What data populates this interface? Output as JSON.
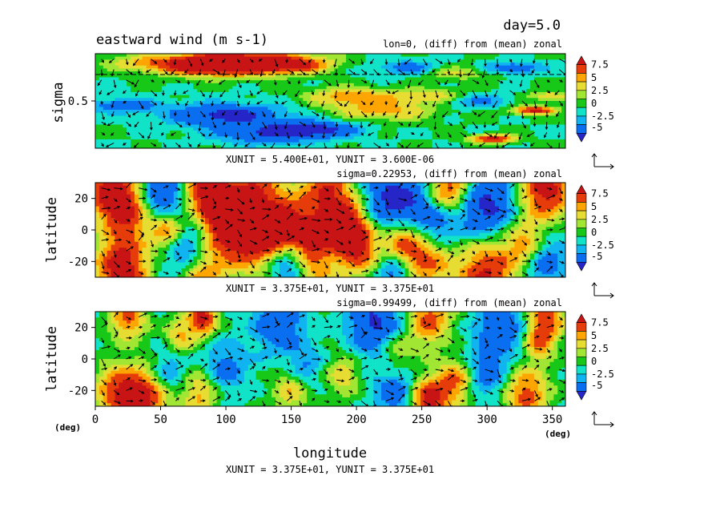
{
  "figure": {
    "day_label": "day=5.0",
    "title": "eastward wind (m s-1)",
    "xlabel": "longitude"
  },
  "colors": {
    "levels": [
      "#2626c8",
      "#0a6ef0",
      "#10b4f0",
      "#10e3c8",
      "#18c818",
      "#a0e632",
      "#e6dc32",
      "#ffa500",
      "#e63c0a",
      "#c81414"
    ],
    "contour_line": "#000000",
    "vector": "#000000"
  },
  "colorbar": {
    "tick_labels": [
      "7.5",
      "5",
      "2.5",
      "0",
      "-2.5",
      "-5"
    ]
  },
  "chart_data": [
    {
      "type": "heatmap",
      "panel": "top",
      "subtitle": "lon=0, (diff) from (mean) zonal",
      "xlabel": "",
      "ylabel": "sigma",
      "y_ticks": [
        "0.5"
      ],
      "x_ticks": [],
      "unit_text": "XUNIT = 5.400E+01, YUNIT = 3.600E-06",
      "x_range": [
        -90,
        90
      ],
      "y_range": [
        0.0,
        1.0
      ],
      "y_inverted": true,
      "color_levels": [
        -5,
        -2.5,
        0,
        2.5,
        5,
        7.5
      ],
      "blobs": [
        {
          "x": -45,
          "y": 0.12,
          "v": 9.5,
          "r": 14
        },
        {
          "x": -30,
          "y": 0.08,
          "v": 7.0,
          "r": 18
        },
        {
          "x": -15,
          "y": 0.12,
          "v": 6.0,
          "r": 10
        },
        {
          "x": -70,
          "y": 0.1,
          "v": 3.5,
          "r": 12
        },
        {
          "x": 8,
          "y": 0.45,
          "v": 5.0,
          "r": 12
        },
        {
          "x": 20,
          "y": 0.6,
          "v": 4.5,
          "r": 14
        },
        {
          "x": 38,
          "y": 0.45,
          "v": 4.0,
          "r": 10
        },
        {
          "x": 48,
          "y": 0.2,
          "v": 3.0,
          "r": 10
        },
        {
          "x": 62,
          "y": 0.9,
          "v": 9.0,
          "r": 6
        },
        {
          "x": 78,
          "y": 0.6,
          "v": 8.5,
          "r": 6
        },
        {
          "x": 84,
          "y": 0.45,
          "v": 4.0,
          "r": 6
        },
        {
          "x": -40,
          "y": 0.65,
          "v": -6.0,
          "r": 16
        },
        {
          "x": -25,
          "y": 0.85,
          "v": -4.5,
          "r": 14
        },
        {
          "x": -5,
          "y": 0.8,
          "v": -5.5,
          "r": 12
        },
        {
          "x": -80,
          "y": 0.55,
          "v": -4.0,
          "r": 10
        },
        {
          "x": 55,
          "y": 0.5,
          "v": -3.0,
          "r": 10
        },
        {
          "x": 70,
          "y": 0.15,
          "v": -4.5,
          "r": 8
        },
        {
          "x": 30,
          "y": 0.15,
          "v": -3.5,
          "r": 10
        }
      ]
    },
    {
      "type": "heatmap",
      "panel": "middle",
      "subtitle": "sigma=0.22953, (diff) from (mean) zonal",
      "xlabel": "",
      "ylabel": "latitude",
      "y_ticks": [
        "20",
        "0",
        "-20"
      ],
      "x_ticks": [],
      "unit_text": "XUNIT = 3.375E+01, YUNIT = 3.375E+01",
      "x_range": [
        0,
        360
      ],
      "y_range": [
        -30,
        30
      ],
      "y_inverted": false,
      "color_levels": [
        -5,
        -2.5,
        0,
        2.5,
        5,
        7.5
      ],
      "blobs": [
        {
          "x": 10,
          "y": 26,
          "v": 8.0,
          "r": 12
        },
        {
          "x": 85,
          "y": 26,
          "v": 9.0,
          "r": 12
        },
        {
          "x": 120,
          "y": 26,
          "v": 6.0,
          "r": 16
        },
        {
          "x": 175,
          "y": 25,
          "v": 7.0,
          "r": 14
        },
        {
          "x": 270,
          "y": 26,
          "v": 7.5,
          "r": 12
        },
        {
          "x": 345,
          "y": 26,
          "v": 9.0,
          "r": 14
        },
        {
          "x": 25,
          "y": 12,
          "v": 8.0,
          "r": 14
        },
        {
          "x": 55,
          "y": 0,
          "v": 7.0,
          "r": 10
        },
        {
          "x": 100,
          "y": 5,
          "v": 8.5,
          "r": 14
        },
        {
          "x": 122,
          "y": -3,
          "v": 9.5,
          "r": 16
        },
        {
          "x": 145,
          "y": 2,
          "v": 9.5,
          "r": 12
        },
        {
          "x": 165,
          "y": -5,
          "v": 8.5,
          "r": 10
        },
        {
          "x": 190,
          "y": 6,
          "v": 8.0,
          "r": 12
        },
        {
          "x": 200,
          "y": -10,
          "v": 8.5,
          "r": 12
        },
        {
          "x": 235,
          "y": -8,
          "v": 7.5,
          "r": 12
        },
        {
          "x": 255,
          "y": -18,
          "v": 6.5,
          "r": 14
        },
        {
          "x": 330,
          "y": -10,
          "v": 7.0,
          "r": 12
        },
        {
          "x": 20,
          "y": -25,
          "v": 9.5,
          "r": 14
        },
        {
          "x": 80,
          "y": -28,
          "v": 7.0,
          "r": 14
        },
        {
          "x": 165,
          "y": -27,
          "v": 6.0,
          "r": 14
        },
        {
          "x": 300,
          "y": -28,
          "v": 8.0,
          "r": 16
        },
        {
          "x": 50,
          "y": 20,
          "v": -6.0,
          "r": 14
        },
        {
          "x": 230,
          "y": 18,
          "v": -6.5,
          "r": 18
        },
        {
          "x": 300,
          "y": 15,
          "v": -6.0,
          "r": 16
        },
        {
          "x": 260,
          "y": 2,
          "v": -5.0,
          "r": 14
        },
        {
          "x": 70,
          "y": -15,
          "v": -6.0,
          "r": 14
        },
        {
          "x": 150,
          "y": -20,
          "v": -6.5,
          "r": 14
        },
        {
          "x": 230,
          "y": -25,
          "v": -5.0,
          "r": 10
        },
        {
          "x": 340,
          "y": -18,
          "v": -5.5,
          "r": 14
        }
      ]
    },
    {
      "type": "heatmap",
      "panel": "bottom",
      "subtitle": "sigma=0.99499, (diff) from (mean) zonal",
      "xlabel": "longitude",
      "x_unit_left": "(deg)",
      "x_unit_right": "(deg)",
      "ylabel": "latitude",
      "y_ticks": [
        "20",
        "0",
        "-20"
      ],
      "x_ticks": [
        "0",
        "50",
        "100",
        "150",
        "200",
        "250",
        "300",
        "350"
      ],
      "unit_text": "XUNIT = 3.375E+01, YUNIT = 3.375E+01",
      "x_range": [
        0,
        360
      ],
      "y_range": [
        -30,
        30
      ],
      "y_inverted": false,
      "color_levels": [
        -5,
        -2.5,
        0,
        2.5,
        5,
        7.5
      ],
      "blobs": [
        {
          "x": 25,
          "y": 26,
          "v": 6.0,
          "r": 10
        },
        {
          "x": 82,
          "y": 26,
          "v": 8.5,
          "r": 8
        },
        {
          "x": 255,
          "y": 26,
          "v": 6.5,
          "r": 12
        },
        {
          "x": 345,
          "y": 26,
          "v": 7.0,
          "r": 10
        },
        {
          "x": 65,
          "y": 15,
          "v": 4.0,
          "r": 8
        },
        {
          "x": 230,
          "y": 5,
          "v": 3.5,
          "r": 10
        },
        {
          "x": 340,
          "y": 10,
          "v": 5.0,
          "r": 8
        },
        {
          "x": 15,
          "y": -20,
          "v": 5.0,
          "r": 12
        },
        {
          "x": 35,
          "y": -26,
          "v": 9.0,
          "r": 14
        },
        {
          "x": 80,
          "y": -22,
          "v": 4.5,
          "r": 10
        },
        {
          "x": 150,
          "y": -20,
          "v": 4.0,
          "r": 10
        },
        {
          "x": 255,
          "y": -26,
          "v": 9.0,
          "r": 10
        },
        {
          "x": 275,
          "y": -15,
          "v": 6.0,
          "r": 10
        },
        {
          "x": 330,
          "y": -22,
          "v": 6.5,
          "r": 12
        },
        {
          "x": 190,
          "y": -10,
          "v": 3.5,
          "r": 10
        },
        {
          "x": 140,
          "y": 24,
          "v": -5.0,
          "r": 14
        },
        {
          "x": 215,
          "y": 22,
          "v": -5.5,
          "r": 16
        },
        {
          "x": 310,
          "y": 20,
          "v": -4.5,
          "r": 14
        },
        {
          "x": 100,
          "y": -5,
          "v": -3.5,
          "r": 12
        },
        {
          "x": 160,
          "y": -5,
          "v": -3.0,
          "r": 10
        },
        {
          "x": 300,
          "y": -10,
          "v": -3.5,
          "r": 12
        },
        {
          "x": 230,
          "y": -22,
          "v": -4.0,
          "r": 12
        },
        {
          "x": 55,
          "y": -8,
          "v": -3.0,
          "r": 10
        }
      ]
    }
  ]
}
